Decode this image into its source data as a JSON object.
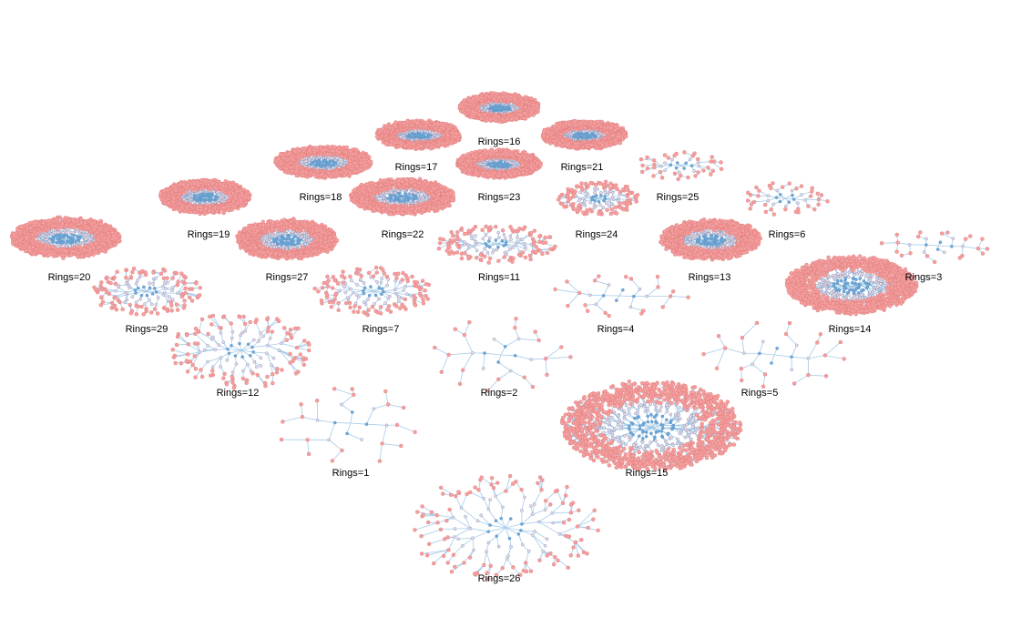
{
  "graphs": [
    {
      "label": "Rings=16",
      "style": "dense"
    },
    {
      "label": "Rings=17",
      "style": "dense"
    },
    {
      "label": "Rings=21",
      "style": "dense"
    },
    {
      "label": "Rings=18",
      "style": "dense"
    },
    {
      "label": "Rings=23",
      "style": "dense"
    },
    {
      "label": "Rings=25",
      "style": "sparse"
    },
    {
      "label": "Rings=19",
      "style": "dense"
    },
    {
      "label": "Rings=22",
      "style": "dense"
    },
    {
      "label": "Rings=24",
      "style": "medium"
    },
    {
      "label": "Rings=6",
      "style": "sparse"
    },
    {
      "label": "Rings=20",
      "style": "dense"
    },
    {
      "label": "Rings=27",
      "style": "dense"
    },
    {
      "label": "Rings=11",
      "style": "medium"
    },
    {
      "label": "Rings=13",
      "style": "dense"
    },
    {
      "label": "Rings=3",
      "style": "tree"
    },
    {
      "label": "Rings=29",
      "style": "medium"
    },
    {
      "label": "Rings=7",
      "style": "medium"
    },
    {
      "label": "Rings=4",
      "style": "tree"
    },
    {
      "label": "Rings=14",
      "style": "dense"
    },
    {
      "label": "Rings=12",
      "style": "medium"
    },
    {
      "label": "Rings=2",
      "style": "tree"
    },
    {
      "label": "Rings=5",
      "style": "tree"
    },
    {
      "label": "Rings=1",
      "style": "tree"
    },
    {
      "label": "Rings=15",
      "style": "dense"
    },
    {
      "label": "Rings=26",
      "style": "medium"
    }
  ],
  "colors": {
    "edge": "#9cc6e6",
    "inner_node": "#6fa8d8",
    "outer_node": "#f4a0a0",
    "background": "#ffffff"
  }
}
